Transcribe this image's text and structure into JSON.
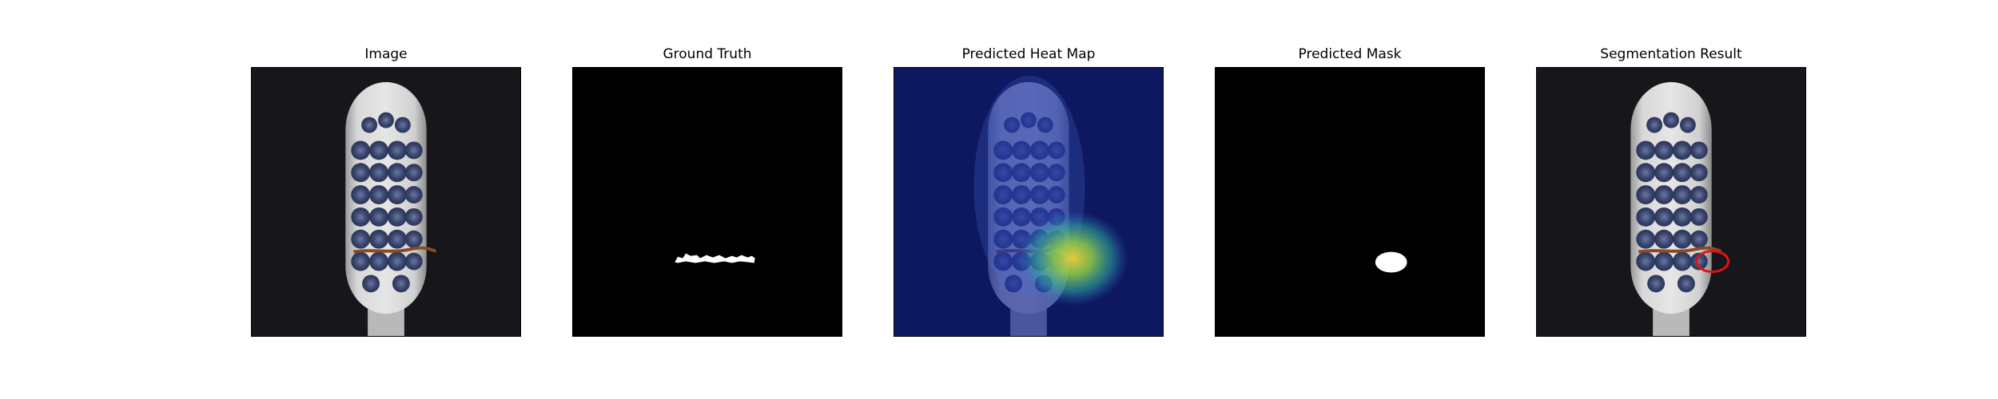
{
  "figure": {
    "panels": [
      {
        "title": "Image"
      },
      {
        "title": "Ground Truth"
      },
      {
        "title": "Predicted Heat Map"
      },
      {
        "title": "Predicted Mask"
      },
      {
        "title": "Segmentation Result"
      }
    ]
  },
  "colors": {
    "background_dark": "#16161b",
    "mask_white": "#ffffff",
    "mask_black": "#000000",
    "heatmap_cold": "#0a1a8c",
    "heatmap_hot": "#f5d23a",
    "contour_red": "#e01414",
    "defect_brown": "#8a4a25",
    "bristle_blue": "#3b4770"
  }
}
